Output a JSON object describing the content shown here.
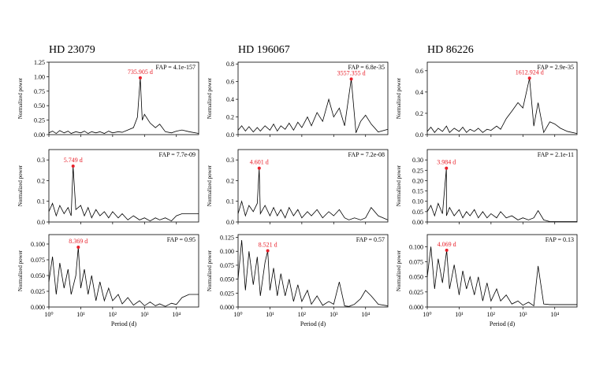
{
  "chart_data": [
    {
      "type": "line",
      "title": "HD 23079",
      "ylabel": "Normalized power",
      "xscale": "log",
      "xlim": [
        1,
        50000
      ],
      "ylim": [
        0,
        1.25
      ],
      "xticks": [
        1,
        10,
        100,
        1000,
        10000
      ],
      "yticks": [
        {
          "value": 0,
          "label": "0.00"
        },
        {
          "value": 0.25,
          "label": "0.25"
        },
        {
          "value": 0.5,
          "label": "0.50"
        },
        {
          "value": 0.75,
          "label": "0.75"
        },
        {
          "value": 1,
          "label": "1.00"
        },
        {
          "value": 1.25,
          "label": "1.25"
        }
      ],
      "color": "#000000",
      "x": [
        1,
        1.3,
        1.7,
        2.2,
        3,
        4,
        5,
        7,
        10,
        13,
        17,
        22,
        30,
        40,
        55,
        75,
        100,
        150,
        200,
        300,
        450,
        600,
        735.905,
        850,
        1000,
        1500,
        2200,
        3000,
        4500,
        7000,
        10000,
        15000,
        25000,
        50000
      ],
      "values": [
        0.03,
        0.06,
        0.02,
        0.07,
        0.03,
        0.06,
        0.02,
        0.05,
        0.03,
        0.06,
        0.02,
        0.05,
        0.03,
        0.05,
        0.02,
        0.06,
        0.03,
        0.05,
        0.04,
        0.08,
        0.12,
        0.3,
        0.98,
        0.25,
        0.35,
        0.2,
        0.12,
        0.18,
        0.05,
        0.03,
        0.06,
        0.08,
        0.05,
        0.02
      ],
      "annotation": "FAP = 4.1e-157",
      "peak": {
        "x": 735.905,
        "y": 0.98,
        "label": "735.905 d",
        "color": "#e8202a"
      }
    },
    {
      "type": "line",
      "title": "HD 196067",
      "ylabel": "Normalized power",
      "xscale": "log",
      "xlim": [
        1,
        50000
      ],
      "ylim": [
        0,
        0.82
      ],
      "xticks": [
        1,
        10,
        100,
        1000,
        10000
      ],
      "yticks": [
        {
          "value": 0,
          "label": "0.0"
        },
        0.2,
        0.4,
        0.6,
        0.8
      ],
      "color": "#000000",
      "x": [
        1,
        1.3,
        1.7,
        2.2,
        3,
        4,
        5,
        7,
        10,
        13,
        17,
        22,
        30,
        40,
        55,
        75,
        100,
        150,
        200,
        300,
        450,
        700,
        1000,
        1500,
        2200,
        3557.355,
        5000,
        7000,
        10000,
        15000,
        25000,
        50000
      ],
      "values": [
        0.05,
        0.1,
        0.04,
        0.09,
        0.03,
        0.08,
        0.04,
        0.1,
        0.05,
        0.12,
        0.04,
        0.1,
        0.06,
        0.13,
        0.05,
        0.14,
        0.08,
        0.2,
        0.1,
        0.25,
        0.15,
        0.4,
        0.2,
        0.3,
        0.1,
        0.63,
        0.02,
        0.15,
        0.22,
        0.12,
        0.03,
        0.06
      ],
      "annotation": "FAP = 6.8e-35",
      "peak": {
        "x": 3557.355,
        "y": 0.63,
        "label": "3557.355 d",
        "color": "#e8202a"
      }
    },
    {
      "type": "line",
      "title": "HD 86226",
      "ylabel": "Normalized power",
      "xscale": "log",
      "xlim": [
        1,
        50000
      ],
      "ylim": [
        0,
        0.68
      ],
      "xticks": [
        1,
        10,
        100,
        1000,
        10000
      ],
      "yticks": [
        {
          "value": 0,
          "label": "0.0"
        },
        0.2,
        0.4,
        0.6
      ],
      "color": "#000000",
      "x": [
        1,
        1.3,
        1.7,
        2.2,
        3,
        4,
        5,
        7,
        10,
        13,
        17,
        22,
        30,
        40,
        55,
        75,
        100,
        150,
        200,
        300,
        450,
        700,
        1000,
        1612.924,
        2200,
        3000,
        4500,
        7000,
        10000,
        15000,
        25000,
        50000
      ],
      "values": [
        0.03,
        0.07,
        0.02,
        0.06,
        0.03,
        0.08,
        0.02,
        0.06,
        0.03,
        0.07,
        0.02,
        0.05,
        0.03,
        0.06,
        0.02,
        0.05,
        0.04,
        0.08,
        0.05,
        0.15,
        0.22,
        0.3,
        0.25,
        0.53,
        0.08,
        0.3,
        0.02,
        0.12,
        0.1,
        0.06,
        0.03,
        0.01
      ],
      "annotation": "FAP = 2.9e-35",
      "peak": {
        "x": 1612.924,
        "y": 0.53,
        "label": "1612.924 d",
        "color": "#e8202a"
      }
    },
    {
      "type": "line",
      "ylabel": "Normalized power",
      "xscale": "log",
      "xlim": [
        1,
        50000
      ],
      "ylim": [
        0,
        0.35
      ],
      "xticks": [
        1,
        10,
        100,
        1000,
        10000
      ],
      "yticks": [
        {
          "value": 0,
          "label": "0.0"
        },
        0.1,
        0.2,
        0.3
      ],
      "color": "#000000",
      "x": [
        1,
        1.3,
        1.7,
        2.2,
        3,
        4,
        5,
        5.749,
        7,
        10,
        13,
        17,
        22,
        30,
        40,
        55,
        75,
        100,
        150,
        200,
        300,
        450,
        700,
        1000,
        1500,
        2200,
        3000,
        4500,
        7000,
        10000,
        15000,
        25000,
        50000
      ],
      "values": [
        0.05,
        0.09,
        0.03,
        0.08,
        0.04,
        0.07,
        0.03,
        0.27,
        0.06,
        0.08,
        0.03,
        0.07,
        0.02,
        0.06,
        0.03,
        0.05,
        0.02,
        0.05,
        0.02,
        0.04,
        0.01,
        0.03,
        0.01,
        0.02,
        0.005,
        0.02,
        0.01,
        0.02,
        0.005,
        0.03,
        0.04,
        0.04,
        0.04
      ],
      "annotation": "FAP = 7.7e-09",
      "peak": {
        "x": 5.749,
        "y": 0.27,
        "label": "5.749 d",
        "color": "#e8202a"
      }
    },
    {
      "type": "line",
      "ylabel": "Normalized power",
      "xscale": "log",
      "xlim": [
        1,
        50000
      ],
      "ylim": [
        0,
        0.35
      ],
      "xticks": [
        1,
        10,
        100,
        1000,
        10000
      ],
      "yticks": [
        {
          "value": 0,
          "label": "0.0"
        },
        0.1,
        0.2,
        0.3
      ],
      "color": "#000000",
      "x": [
        1,
        1.3,
        1.7,
        2.2,
        3,
        4,
        4.601,
        5,
        7,
        10,
        13,
        17,
        22,
        30,
        40,
        55,
        75,
        100,
        150,
        200,
        300,
        450,
        700,
        1000,
        1500,
        2200,
        3000,
        4500,
        7000,
        10000,
        15000,
        25000,
        50000
      ],
      "values": [
        0.04,
        0.1,
        0.03,
        0.08,
        0.05,
        0.09,
        0.26,
        0.04,
        0.08,
        0.03,
        0.07,
        0.03,
        0.06,
        0.02,
        0.07,
        0.03,
        0.06,
        0.02,
        0.05,
        0.03,
        0.06,
        0.02,
        0.05,
        0.03,
        0.06,
        0.02,
        0.01,
        0.02,
        0.01,
        0.02,
        0.07,
        0.03,
        0.01
      ],
      "annotation": "FAP = 7.2e-08",
      "peak": {
        "x": 4.601,
        "y": 0.26,
        "label": "4.601 d",
        "color": "#e8202a"
      }
    },
    {
      "type": "line",
      "ylabel": "Normalized power",
      "xscale": "log",
      "xlim": [
        1,
        50000
      ],
      "ylim": [
        0,
        0.35
      ],
      "xticks": [
        1,
        10,
        100,
        1000,
        10000
      ],
      "yticks": [
        {
          "value": 0,
          "label": "0.00"
        },
        {
          "value": 0.05,
          "label": "0.05"
        },
        {
          "value": 0.1,
          "label": "0.10"
        },
        {
          "value": 0.15,
          "label": "0.15"
        },
        {
          "value": 0.2,
          "label": "0.20"
        },
        {
          "value": 0.25,
          "label": "0.25"
        },
        {
          "value": 0.3,
          "label": "0.30"
        }
      ],
      "color": "#000000",
      "x": [
        1,
        1.3,
        1.7,
        2.2,
        3,
        3.984,
        4,
        5,
        7,
        10,
        13,
        17,
        22,
        30,
        40,
        55,
        75,
        100,
        150,
        200,
        300,
        450,
        700,
        1000,
        1500,
        2200,
        3000,
        4500,
        7000,
        10000,
        15000,
        25000,
        50000
      ],
      "values": [
        0.05,
        0.08,
        0.03,
        0.09,
        0.04,
        0.26,
        0.03,
        0.07,
        0.03,
        0.06,
        0.02,
        0.05,
        0.03,
        0.06,
        0.02,
        0.05,
        0.02,
        0.04,
        0.02,
        0.05,
        0.02,
        0.03,
        0.01,
        0.02,
        0.01,
        0.02,
        0.055,
        0.01,
        0.002,
        0.002,
        0.002,
        0.002,
        0.002
      ],
      "annotation": "FAP = 2.1e-11",
      "peak": {
        "x": 3.984,
        "y": 0.26,
        "label": "3.984 d",
        "color": "#e8202a"
      }
    },
    {
      "type": "line",
      "ylabel": "Normalized power",
      "xlabel": "Period (d)",
      "xscale": "log",
      "xlim": [
        1,
        50000
      ],
      "ylim": [
        0,
        0.115
      ],
      "xticks": [
        {
          "value": 1,
          "label": "10⁰"
        },
        {
          "value": 10,
          "label": "10¹"
        },
        {
          "value": 100,
          "label": "10²"
        },
        {
          "value": 1000,
          "label": "10³"
        },
        {
          "value": 10000,
          "label": "10⁴"
        }
      ],
      "yticks": [
        {
          "value": 0,
          "label": "0.000"
        },
        0.025,
        {
          "value": 0.05,
          "label": "0.050"
        },
        0.075,
        {
          "value": 0.1,
          "label": "0.100"
        }
      ],
      "color": "#000000",
      "x": [
        1,
        1.3,
        1.7,
        2.2,
        3,
        4,
        5,
        7,
        8.369,
        10,
        13,
        17,
        22,
        30,
        40,
        55,
        75,
        100,
        150,
        200,
        300,
        450,
        700,
        1000,
        1500,
        2200,
        3000,
        4500,
        7000,
        10000,
        15000,
        25000,
        50000
      ],
      "values": [
        0.04,
        0.08,
        0.02,
        0.07,
        0.03,
        0.06,
        0.02,
        0.05,
        0.095,
        0.03,
        0.06,
        0.02,
        0.05,
        0.01,
        0.04,
        0.01,
        0.03,
        0.01,
        0.02,
        0.005,
        0.015,
        0.003,
        0.01,
        0.002,
        0.008,
        0.002,
        0.005,
        0.001,
        0.006,
        0.004,
        0.015,
        0.02,
        0.02
      ],
      "annotation": "FAP = 0.95",
      "peak": {
        "x": 8.369,
        "y": 0.095,
        "label": "8.369 d",
        "color": "#e8202a"
      }
    },
    {
      "type": "line",
      "ylabel": "Normalized power",
      "xlabel": "Period (d)",
      "xscale": "log",
      "xlim": [
        1,
        50000
      ],
      "ylim": [
        0,
        0.13
      ],
      "xticks": [
        {
          "value": 1,
          "label": "10⁰"
        },
        {
          "value": 10,
          "label": "10¹"
        },
        {
          "value": 100,
          "label": "10²"
        },
        {
          "value": 1000,
          "label": "10³"
        },
        {
          "value": 10000,
          "label": "10⁴"
        }
      ],
      "yticks": [
        {
          "value": 0,
          "label": "0.000"
        },
        0.025,
        {
          "value": 0.05,
          "label": "0.050"
        },
        0.075,
        {
          "value": 0.1,
          "label": "0.100"
        },
        0.125
      ],
      "color": "#000000",
      "x": [
        1,
        1.3,
        1.7,
        2.2,
        3,
        4,
        5,
        7,
        8.521,
        10,
        13,
        17,
        22,
        30,
        40,
        55,
        75,
        100,
        150,
        200,
        300,
        450,
        700,
        1000,
        1500,
        2200,
        3000,
        4500,
        7000,
        10000,
        15000,
        25000,
        50000
      ],
      "values": [
        0.05,
        0.12,
        0.03,
        0.1,
        0.04,
        0.09,
        0.02,
        0.08,
        0.101,
        0.03,
        0.07,
        0.02,
        0.06,
        0.02,
        0.05,
        0.01,
        0.04,
        0.01,
        0.03,
        0.005,
        0.02,
        0.003,
        0.01,
        0.005,
        0.045,
        0.002,
        0.001,
        0.005,
        0.015,
        0.03,
        0.02,
        0.005,
        0.002
      ],
      "annotation": "FAP = 0.57",
      "peak": {
        "x": 8.521,
        "y": 0.101,
        "label": "8.521 d",
        "color": "#e8202a"
      }
    },
    {
      "type": "line",
      "ylabel": "Normalized power",
      "xlabel": "Period (d)",
      "xscale": "log",
      "xlim": [
        1,
        50000
      ],
      "ylim": [
        0,
        0.12
      ],
      "xticks": [
        {
          "value": 1,
          "label": "10⁰"
        },
        {
          "value": 10,
          "label": "10¹"
        },
        {
          "value": 100,
          "label": "10²"
        },
        {
          "value": 1000,
          "label": "10³"
        },
        {
          "value": 10000,
          "label": "10⁴"
        }
      ],
      "yticks": [
        {
          "value": 0,
          "label": "0.000"
        },
        0.025,
        {
          "value": 0.05,
          "label": "0.050"
        },
        0.075,
        {
          "value": 0.1,
          "label": "0.100"
        }
      ],
      "color": "#000000",
      "x": [
        1,
        1.3,
        1.7,
        2.2,
        3,
        4.069,
        5,
        7,
        10,
        13,
        17,
        22,
        30,
        40,
        55,
        75,
        100,
        150,
        200,
        300,
        450,
        700,
        1000,
        1500,
        2200,
        3000,
        4500,
        7000,
        10000,
        15000,
        25000,
        50000
      ],
      "values": [
        0.05,
        0.1,
        0.03,
        0.08,
        0.04,
        0.094,
        0.03,
        0.07,
        0.02,
        0.06,
        0.03,
        0.05,
        0.02,
        0.05,
        0.01,
        0.04,
        0.01,
        0.03,
        0.01,
        0.02,
        0.005,
        0.01,
        0.003,
        0.008,
        0.002,
        0.068,
        0.005,
        0.004,
        0.004,
        0.004,
        0.004,
        0.004
      ],
      "annotation": "FAP = 0.13",
      "peak": {
        "x": 4.069,
        "y": 0.094,
        "label": "4.069 d",
        "color": "#e8202a"
      }
    }
  ]
}
